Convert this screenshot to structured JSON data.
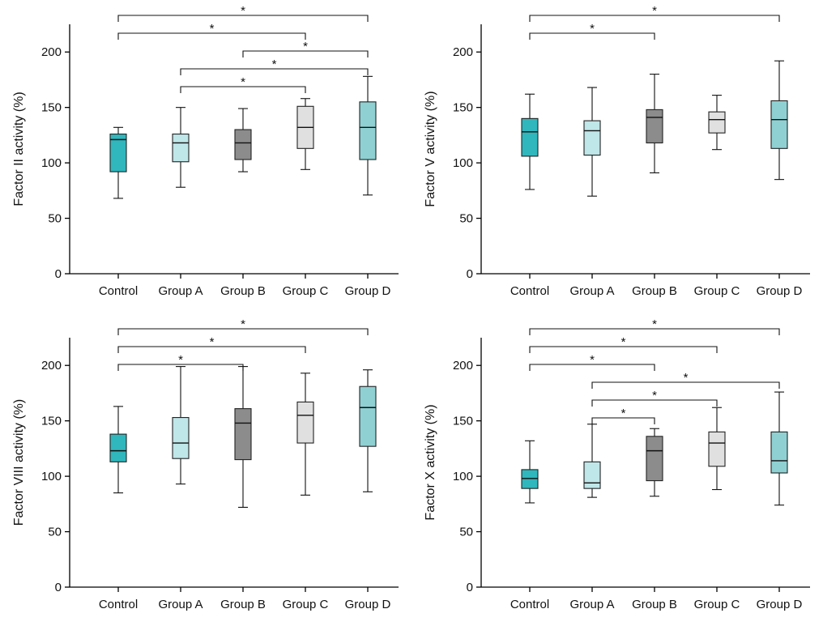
{
  "chart_data": [
    {
      "type": "box",
      "ylabel": "Factor II activity (%)",
      "ylim": [
        0,
        200
      ],
      "yticks": [
        0,
        50,
        100,
        150,
        200
      ],
      "categories": [
        "Control",
        "Group A",
        "Group B",
        "Group C",
        "Group D"
      ],
      "colors": [
        "#2fb7bd",
        "#bfe6e9",
        "#8c8c8c",
        "#e0e0e0",
        "#8fd1d3"
      ],
      "boxes": [
        {
          "min": 68,
          "q1": 92,
          "median": 121,
          "q3": 126,
          "max": 132
        },
        {
          "min": 78,
          "q1": 101,
          "median": 118,
          "q3": 126,
          "max": 150
        },
        {
          "min": 92,
          "q1": 103,
          "median": 118,
          "q3": 130,
          "max": 149
        },
        {
          "min": 94,
          "q1": 113,
          "median": 132,
          "q3": 151,
          "max": 158
        },
        {
          "min": 71,
          "q1": 103,
          "median": 132,
          "q3": 155,
          "max": 178
        }
      ],
      "significance": [
        {
          "from": 0,
          "to": 4,
          "label": "*"
        },
        {
          "from": 0,
          "to": 3,
          "label": "*"
        },
        {
          "from": 2,
          "to": 4,
          "label": "*"
        },
        {
          "from": 1,
          "to": 4,
          "label": "*"
        },
        {
          "from": 1,
          "to": 3,
          "label": "*"
        }
      ]
    },
    {
      "type": "box",
      "ylabel": "Factor V activity (%)",
      "ylim": [
        0,
        200
      ],
      "yticks": [
        0,
        50,
        100,
        150,
        200
      ],
      "categories": [
        "Control",
        "Group A",
        "Group B",
        "Group C",
        "Group D"
      ],
      "colors": [
        "#2fb7bd",
        "#bfe6e9",
        "#8c8c8c",
        "#e0e0e0",
        "#8fd1d3"
      ],
      "boxes": [
        {
          "min": 76,
          "q1": 106,
          "median": 128,
          "q3": 140,
          "max": 162
        },
        {
          "min": 70,
          "q1": 107,
          "median": 129,
          "q3": 138,
          "max": 168
        },
        {
          "min": 91,
          "q1": 118,
          "median": 141,
          "q3": 148,
          "max": 180
        },
        {
          "min": 112,
          "q1": 127,
          "median": 139,
          "q3": 146,
          "max": 161
        },
        {
          "min": 85,
          "q1": 113,
          "median": 139,
          "q3": 156,
          "max": 192
        }
      ],
      "significance": [
        {
          "from": 0,
          "to": 4,
          "label": "*"
        },
        {
          "from": 0,
          "to": 2,
          "label": "*"
        }
      ]
    },
    {
      "type": "box",
      "ylabel": "Factor VIII activity (%)",
      "ylim": [
        0,
        200
      ],
      "yticks": [
        0,
        50,
        100,
        150,
        200
      ],
      "categories": [
        "Control",
        "Group A",
        "Group B",
        "Group C",
        "Group D"
      ],
      "colors": [
        "#2fb7bd",
        "#bfe6e9",
        "#8c8c8c",
        "#e0e0e0",
        "#8fd1d3"
      ],
      "boxes": [
        {
          "min": 85,
          "q1": 113,
          "median": 123,
          "q3": 138,
          "max": 163
        },
        {
          "min": 93,
          "q1": 116,
          "median": 130,
          "q3": 153,
          "max": 199
        },
        {
          "min": 72,
          "q1": 115,
          "median": 148,
          "q3": 161,
          "max": 199
        },
        {
          "min": 83,
          "q1": 130,
          "median": 155,
          "q3": 167,
          "max": 193
        },
        {
          "min": 86,
          "q1": 127,
          "median": 162,
          "q3": 181,
          "max": 196
        }
      ],
      "significance": [
        {
          "from": 0,
          "to": 4,
          "label": "*"
        },
        {
          "from": 0,
          "to": 3,
          "label": "*"
        },
        {
          "from": 0,
          "to": 2,
          "label": "*"
        }
      ]
    },
    {
      "type": "box",
      "ylabel": "Factor X activity (%)",
      "ylim": [
        0,
        200
      ],
      "yticks": [
        0,
        50,
        100,
        150,
        200
      ],
      "categories": [
        "Control",
        "Group A",
        "Group B",
        "Group C",
        "Group D"
      ],
      "colors": [
        "#2fb7bd",
        "#bfe6e9",
        "#8c8c8c",
        "#e0e0e0",
        "#8fd1d3"
      ],
      "boxes": [
        {
          "min": 76,
          "q1": 89,
          "median": 98,
          "q3": 106,
          "max": 132
        },
        {
          "min": 81,
          "q1": 89,
          "median": 94,
          "q3": 113,
          "max": 147
        },
        {
          "min": 82,
          "q1": 96,
          "median": 123,
          "q3": 136,
          "max": 143
        },
        {
          "min": 88,
          "q1": 109,
          "median": 130,
          "q3": 140,
          "max": 162
        },
        {
          "min": 74,
          "q1": 103,
          "median": 114,
          "q3": 140,
          "max": 176
        }
      ],
      "significance": [
        {
          "from": 0,
          "to": 4,
          "label": "*"
        },
        {
          "from": 0,
          "to": 3,
          "label": "*"
        },
        {
          "from": 0,
          "to": 2,
          "label": "*"
        },
        {
          "from": 1,
          "to": 4,
          "label": "*"
        },
        {
          "from": 1,
          "to": 3,
          "label": "*"
        },
        {
          "from": 1,
          "to": 2,
          "label": "*"
        }
      ]
    }
  ]
}
